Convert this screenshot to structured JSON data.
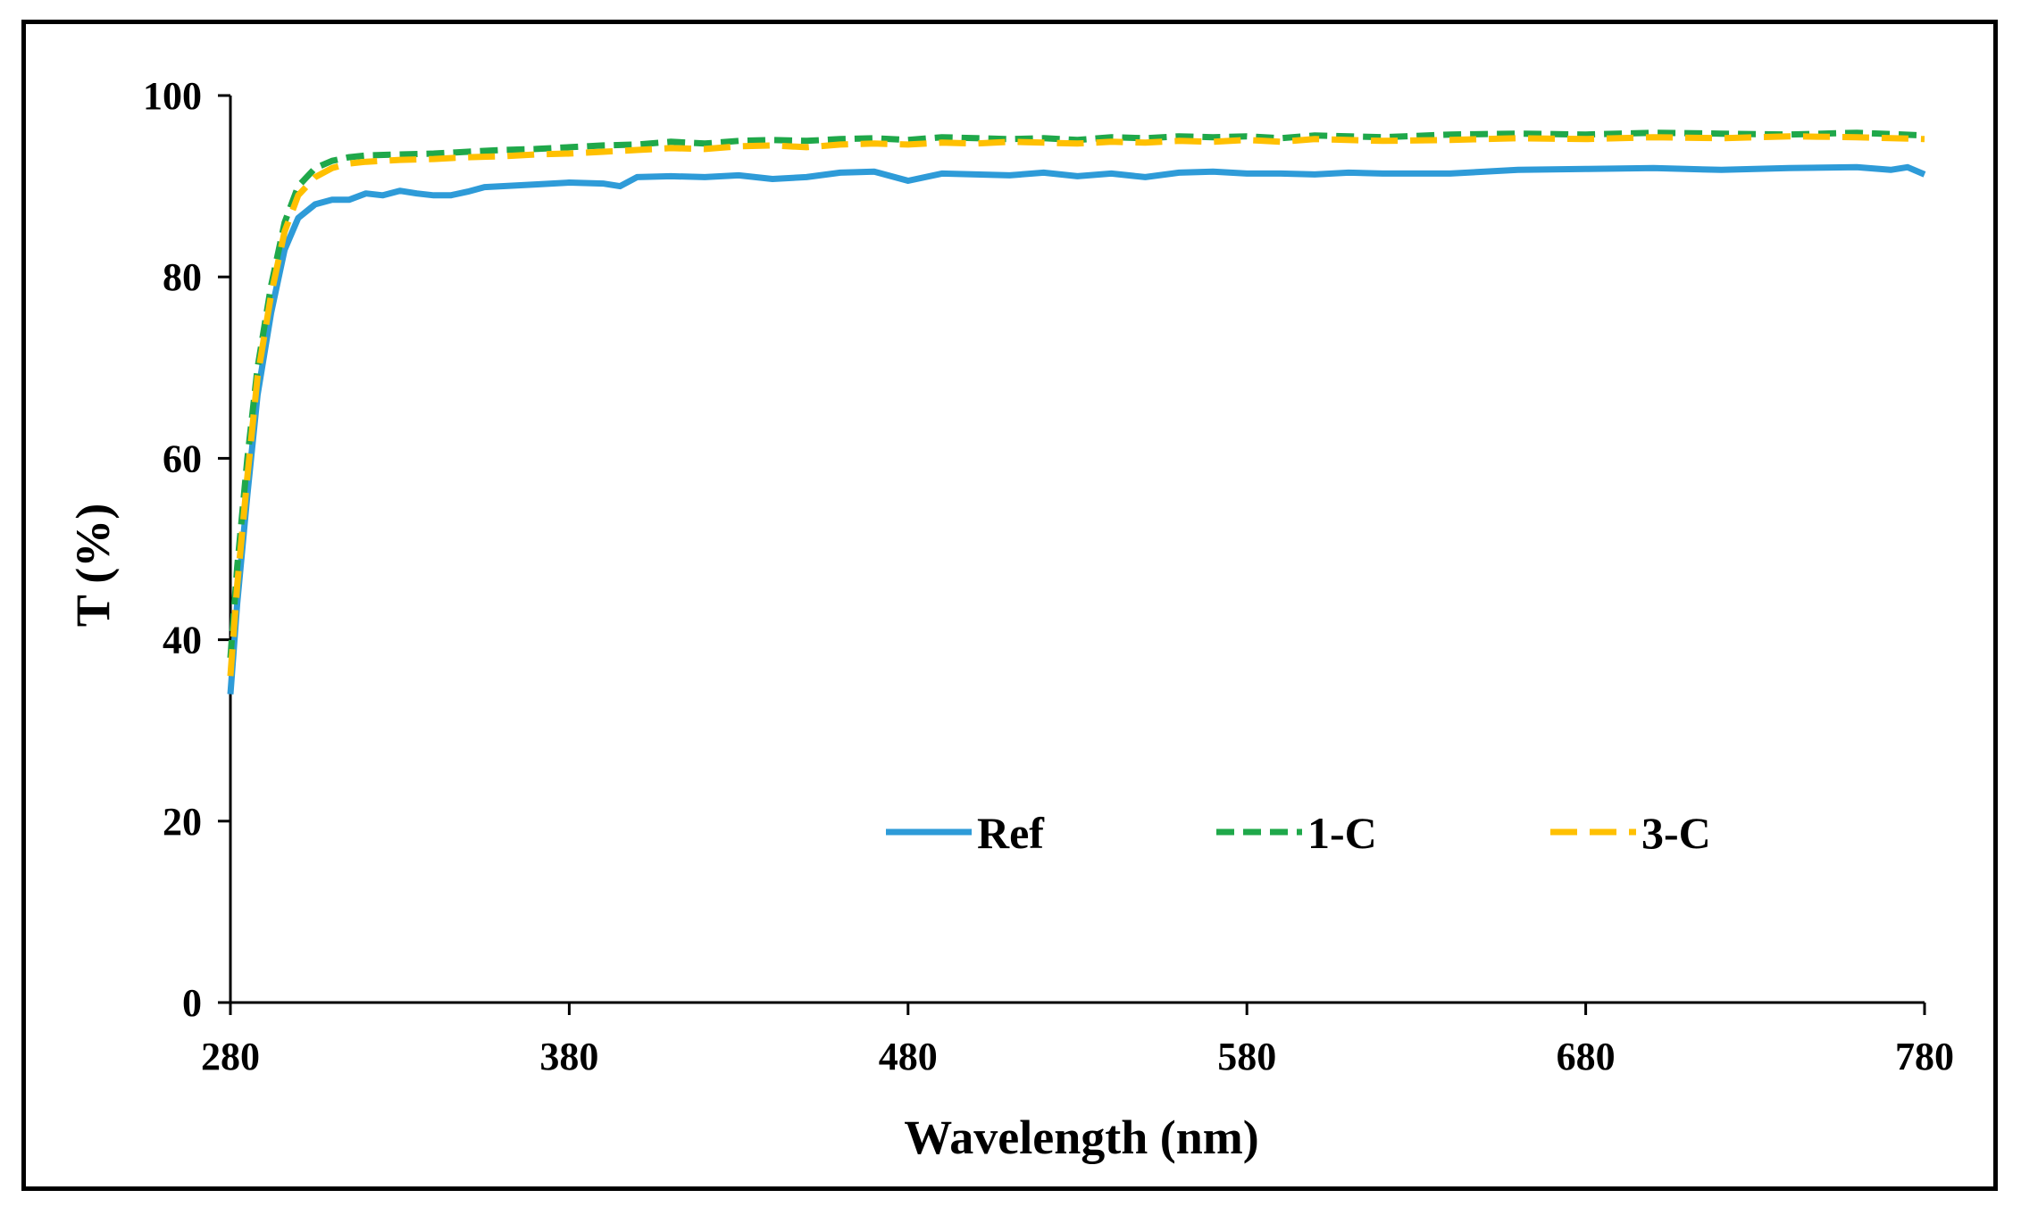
{
  "chart_data": {
    "type": "line",
    "title": "",
    "xlabel": "Wavelength (nm)",
    "ylabel": "T (%)",
    "xlim": [
      280,
      780
    ],
    "ylim": [
      0,
      100
    ],
    "xticks": [
      280,
      380,
      480,
      580,
      680,
      780
    ],
    "yticks": [
      0,
      20,
      40,
      60,
      80,
      100
    ],
    "grid": false,
    "legend": "bottom-center",
    "series": [
      {
        "name": "Ref",
        "color": "#2e9bd8",
        "style": "solid",
        "x": [
          280,
          282,
          285,
          288,
          292,
          296,
          300,
          305,
          310,
          315,
          320,
          325,
          330,
          335,
          340,
          345,
          350,
          355,
          360,
          370,
          380,
          390,
          395,
          400,
          410,
          420,
          430,
          440,
          450,
          460,
          470,
          480,
          490,
          500,
          510,
          520,
          530,
          540,
          550,
          560,
          570,
          580,
          590,
          600,
          610,
          620,
          640,
          660,
          680,
          700,
          720,
          740,
          760,
          770,
          775,
          780
        ],
        "y": [
          34,
          44,
          56,
          67,
          76,
          83,
          86.5,
          88,
          88.5,
          88.5,
          89.2,
          89,
          89.5,
          89.2,
          89,
          89,
          89.4,
          89.9,
          90,
          90.2,
          90.4,
          90.3,
          90,
          91,
          91.1,
          91,
          91.2,
          90.8,
          91,
          91.5,
          91.6,
          90.6,
          91.4,
          91.3,
          91.2,
          91.5,
          91.1,
          91.4,
          91,
          91.5,
          91.6,
          91.4,
          91.4,
          91.3,
          91.5,
          91.4,
          91.4,
          91.8,
          91.9,
          92,
          91.8,
          92,
          92.1,
          91.8,
          92.1,
          91.3
        ]
      },
      {
        "name": "1-C",
        "color": "#1fa84a",
        "style": "dashed",
        "x": [
          280,
          282,
          285,
          288,
          292,
          296,
          300,
          305,
          310,
          315,
          320,
          330,
          340,
          350,
          360,
          370,
          380,
          390,
          400,
          410,
          420,
          430,
          440,
          450,
          460,
          470,
          480,
          490,
          500,
          510,
          520,
          530,
          540,
          550,
          560,
          570,
          580,
          590,
          600,
          620,
          640,
          660,
          680,
          700,
          720,
          740,
          760,
          780
        ],
        "y": [
          38,
          48,
          60,
          70,
          79,
          86,
          90,
          92,
          92.8,
          93.2,
          93.4,
          93.5,
          93.6,
          93.8,
          94,
          94.1,
          94.3,
          94.5,
          94.6,
          94.9,
          94.7,
          95,
          95.1,
          95,
          95.2,
          95.3,
          95.1,
          95.4,
          95.3,
          95.2,
          95.3,
          95.1,
          95.4,
          95.3,
          95.5,
          95.4,
          95.5,
          95.3,
          95.6,
          95.4,
          95.7,
          95.8,
          95.7,
          95.9,
          95.8,
          95.7,
          95.9,
          95.6
        ]
      },
      {
        "name": "3-C",
        "color": "#ffc000",
        "style": "dashed",
        "x": [
          280,
          282,
          285,
          288,
          292,
          296,
          300,
          305,
          310,
          315,
          320,
          330,
          340,
          350,
          360,
          370,
          380,
          390,
          400,
          410,
          420,
          430,
          440,
          450,
          460,
          470,
          480,
          490,
          500,
          510,
          520,
          530,
          540,
          550,
          560,
          570,
          580,
          590,
          600,
          620,
          640,
          660,
          680,
          700,
          720,
          740,
          760,
          780
        ],
        "y": [
          36,
          46,
          58,
          69,
          78,
          85,
          89,
          91,
          92,
          92.5,
          92.7,
          92.9,
          93,
          93.2,
          93.3,
          93.5,
          93.6,
          93.8,
          94,
          94.2,
          94.1,
          94.4,
          94.5,
          94.3,
          94.6,
          94.7,
          94.6,
          94.8,
          94.7,
          94.9,
          94.8,
          94.7,
          94.9,
          94.8,
          95,
          94.9,
          95.1,
          94.9,
          95.2,
          95,
          95.1,
          95.3,
          95.2,
          95.4,
          95.3,
          95.5,
          95.4,
          95.2
        ]
      }
    ]
  }
}
